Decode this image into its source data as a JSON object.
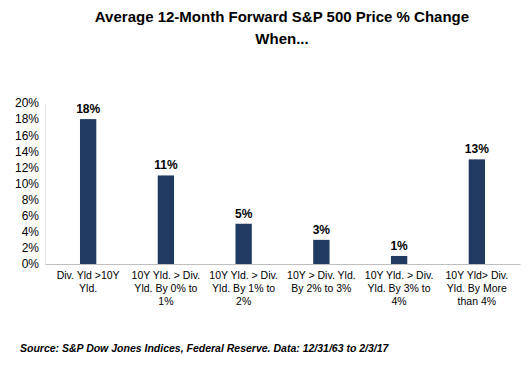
{
  "chart_data": {
    "type": "bar",
    "title": "Average 12-Month Forward S&P 500 Price % Change When...",
    "categories": [
      "Div. Yld >10Y Yld.",
      "10Y Yld. > Div. Yld. By 0% to 1%",
      "10Y Yld. > Div. Yld. By 1% to 2%",
      "10Y > Div. Yld. By 2% to 3%",
      "10Y Yld. > Div. Yld. By 3% to 4%",
      "10Y Yld> Div. Yld. By More than 4%"
    ],
    "values": [
      18,
      11,
      5,
      3,
      1,
      13
    ],
    "value_labels": [
      "18%",
      "11%",
      "5%",
      "3%",
      "1%",
      "13%"
    ],
    "color": "#213a62",
    "ylim": [
      0,
      20
    ],
    "yticks": [
      {
        "value": 0,
        "label": "0%"
      },
      {
        "value": 2,
        "label": "2%"
      },
      {
        "value": 4,
        "label": "4%"
      },
      {
        "value": 6,
        "label": "6%"
      },
      {
        "value": 8,
        "label": "8%"
      },
      {
        "value": 10,
        "label": "10%"
      },
      {
        "value": 12,
        "label": "12%"
      },
      {
        "value": 14,
        "label": "14%"
      },
      {
        "value": 16,
        "label": "16%"
      },
      {
        "value": 18,
        "label": "18%"
      },
      {
        "value": 20,
        "label": "20%"
      }
    ],
    "grid": false,
    "data_labels": true,
    "source": "Source: S&P Dow Jones Indices, Federal Reserve. Data: 12/31/63 to 2/3/17"
  }
}
